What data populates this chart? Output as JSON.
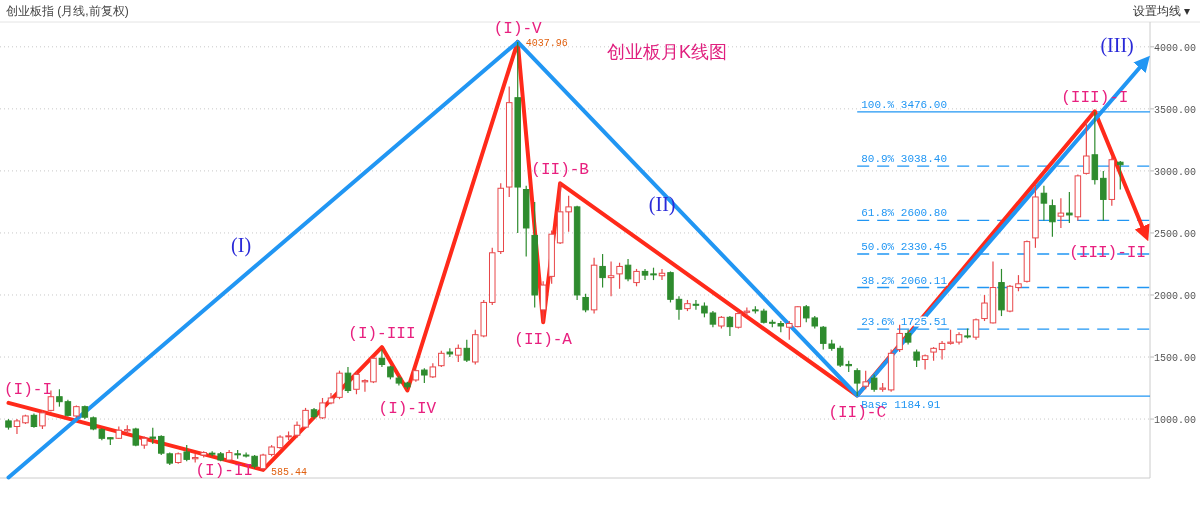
{
  "chart_data": {
    "type": "candlestick",
    "title": "创业板月K线图",
    "subtitle": "创业板指 (月线,前复权)",
    "categories": [
      null,
      null,
      null,
      null,
      null,
      null,
      null,
      null,
      null,
      null,
      null,
      null,
      null,
      null,
      null,
      null,
      null,
      null,
      null,
      null,
      null,
      null,
      null,
      null,
      null,
      null,
      null,
      null,
      null,
      null,
      null,
      null,
      null,
      null,
      null,
      null,
      null,
      null,
      null,
      null,
      null,
      null,
      null,
      null,
      null,
      null,
      null,
      null,
      null,
      null,
      null,
      null,
      null,
      null,
      null,
      null,
      null,
      null,
      null,
      null,
      null,
      null,
      null,
      null,
      null,
      null,
      null,
      null,
      null,
      null,
      null,
      null,
      null,
      null,
      null,
      null,
      null,
      null,
      null,
      null,
      null,
      null,
      null,
      null,
      null,
      null,
      null,
      null,
      null,
      null,
      null,
      null,
      null,
      null,
      null,
      null,
      null,
      null,
      null,
      null,
      null,
      null,
      null,
      null,
      null,
      null,
      null,
      null,
      null,
      null,
      null,
      null,
      null,
      null,
      null,
      null,
      null,
      null,
      null,
      null,
      null,
      null,
      null,
      null,
      null,
      null,
      null,
      null,
      null,
      null,
      null,
      null,
      null,
      null,
      null
    ],
    "ohlc": [
      [
        985,
        1000,
        915,
        935
      ],
      [
        940,
        1000,
        880,
        985
      ],
      [
        970,
        1035,
        960,
        1025
      ],
      [
        1030,
        1045,
        930,
        940
      ],
      [
        945,
        1070,
        920,
        1050
      ],
      [
        1070,
        1230,
        1060,
        1180
      ],
      [
        1180,
        1240,
        1100,
        1140
      ],
      [
        1140,
        1155,
        1020,
        1030
      ],
      [
        1025,
        1110,
        1010,
        1100
      ],
      [
        1100,
        1110,
        1000,
        1015
      ],
      [
        1010,
        1020,
        910,
        920
      ],
      [
        915,
        925,
        830,
        845
      ],
      [
        850,
        855,
        790,
        840
      ],
      [
        845,
        940,
        840,
        910
      ],
      [
        905,
        950,
        880,
        915
      ],
      [
        920,
        930,
        780,
        790
      ],
      [
        790,
        860,
        760,
        845
      ],
      [
        855,
        930,
        800,
        845
      ],
      [
        860,
        870,
        710,
        725
      ],
      [
        720,
        730,
        630,
        645
      ],
      [
        650,
        730,
        640,
        720
      ],
      [
        735,
        790,
        660,
        675
      ],
      [
        680,
        720,
        650,
        690
      ],
      [
        710,
        740,
        690,
        730
      ],
      [
        725,
        740,
        700,
        720
      ],
      [
        720,
        735,
        660,
        670
      ],
      [
        670,
        750,
        660,
        730
      ],
      [
        720,
        750,
        680,
        715
      ],
      [
        710,
        730,
        690,
        705
      ],
      [
        700,
        710,
        600,
        620
      ],
      [
        600,
        720,
        585.44,
        710
      ],
      [
        715,
        790,
        700,
        775
      ],
      [
        770,
        870,
        760,
        855
      ],
      [
        860,
        900,
        830,
        865
      ],
      [
        870,
        980,
        850,
        950
      ],
      [
        935,
        1090,
        920,
        1070
      ],
      [
        1075,
        1090,
        1000,
        1020
      ],
      [
        1010,
        1170,
        1000,
        1130
      ],
      [
        1130,
        1210,
        1120,
        1170
      ],
      [
        1175,
        1390,
        1160,
        1370
      ],
      [
        1370,
        1420,
        1210,
        1230
      ],
      [
        1240,
        1380,
        1200,
        1360
      ],
      [
        1300,
        1320,
        1220,
        1310
      ],
      [
        1300,
        1500,
        1290,
        1490
      ],
      [
        1490,
        1560,
        1420,
        1440
      ],
      [
        1420,
        1430,
        1320,
        1340
      ],
      [
        1330,
        1350,
        1270,
        1290
      ],
      [
        1290,
        1300,
        1240,
        1260
      ],
      [
        1315,
        1400,
        1300,
        1390
      ],
      [
        1395,
        1410,
        1290,
        1355
      ],
      [
        1340,
        1450,
        1330,
        1420
      ],
      [
        1430,
        1550,
        1420,
        1530
      ],
      [
        1540,
        1570,
        1500,
        1525
      ],
      [
        1515,
        1600,
        1460,
        1570
      ],
      [
        1570,
        1640,
        1460,
        1475
      ],
      [
        1460,
        1720,
        1440,
        1680
      ],
      [
        1670,
        1960,
        1660,
        1940
      ],
      [
        1940,
        2380,
        1920,
        2340
      ],
      [
        2350,
        2900,
        2330,
        2860
      ],
      [
        2870,
        3680,
        2790,
        3550
      ],
      [
        3590,
        4037.96,
        2500,
        2870
      ],
      [
        2850,
        2880,
        2310,
        2540
      ],
      [
        2480,
        2750,
        1900,
        2000
      ],
      [
        1880,
        2110,
        1780,
        2080
      ],
      [
        2150,
        2520,
        2090,
        2490
      ],
      [
        2420,
        2900,
        2410,
        2670
      ],
      [
        2670,
        2800,
        2510,
        2710
      ],
      [
        2710,
        2720,
        1960,
        2000
      ],
      [
        1980,
        2010,
        1860,
        1880
      ],
      [
        1880,
        2300,
        1850,
        2240
      ],
      [
        2230,
        2330,
        2060,
        2140
      ],
      [
        2140,
        2270,
        1990,
        2155
      ],
      [
        2170,
        2260,
        2050,
        2230
      ],
      [
        2240,
        2290,
        2110,
        2130
      ],
      [
        2100,
        2210,
        2070,
        2190
      ],
      [
        2190,
        2210,
        2120,
        2160
      ],
      [
        2170,
        2220,
        2120,
        2165
      ],
      [
        2155,
        2210,
        2120,
        2175
      ],
      [
        2180,
        2190,
        1940,
        1965
      ],
      [
        1965,
        1990,
        1800,
        1885
      ],
      [
        1890,
        1960,
        1870,
        1930
      ],
      [
        1925,
        1960,
        1880,
        1920
      ],
      [
        1910,
        1940,
        1820,
        1855
      ],
      [
        1855,
        1870,
        1740,
        1765
      ],
      [
        1750,
        1830,
        1730,
        1820
      ],
      [
        1820,
        1830,
        1670,
        1745
      ],
      [
        1740,
        1870,
        1730,
        1850
      ],
      [
        1860,
        1900,
        1830,
        1870
      ],
      [
        1880,
        1910,
        1850,
        1875
      ],
      [
        1870,
        1890,
        1770,
        1780
      ],
      [
        1780,
        1800,
        1740,
        1775
      ],
      [
        1770,
        1790,
        1700,
        1750
      ],
      [
        1740,
        1790,
        1640,
        1770
      ],
      [
        1745,
        1910,
        1740,
        1905
      ],
      [
        1905,
        1920,
        1780,
        1815
      ],
      [
        1815,
        1830,
        1730,
        1750
      ],
      [
        1740,
        1750,
        1560,
        1610
      ],
      [
        1605,
        1640,
        1550,
        1570
      ],
      [
        1570,
        1590,
        1420,
        1435
      ],
      [
        1440,
        1470,
        1380,
        1430
      ],
      [
        1390,
        1410,
        1184.91,
        1290
      ],
      [
        1265,
        1390,
        1240,
        1300
      ],
      [
        1330,
        1360,
        1220,
        1240
      ],
      [
        1240,
        1290,
        1220,
        1250
      ],
      [
        1235,
        1560,
        1220,
        1530
      ],
      [
        1560,
        1760,
        1540,
        1690
      ],
      [
        1690,
        1720,
        1600,
        1620
      ],
      [
        1540,
        1560,
        1420,
        1475
      ],
      [
        1480,
        1520,
        1400,
        1510
      ],
      [
        1540,
        1580,
        1470,
        1570
      ],
      [
        1560,
        1630,
        1480,
        1610
      ],
      [
        1610,
        1720,
        1600,
        1620
      ],
      [
        1620,
        1700,
        1600,
        1680
      ],
      [
        1670,
        1730,
        1650,
        1665
      ],
      [
        1660,
        1810,
        1640,
        1800
      ],
      [
        1810,
        2000,
        1790,
        1935
      ],
      [
        1775,
        2270,
        1770,
        2060
      ],
      [
        2100,
        2210,
        1830,
        1880
      ],
      [
        1870,
        2080,
        1860,
        2070
      ],
      [
        2060,
        2160,
        2030,
        2090
      ],
      [
        2110,
        2440,
        2100,
        2430
      ],
      [
        2460,
        2890,
        2380,
        2790
      ],
      [
        2820,
        2880,
        2600,
        2740
      ],
      [
        2720,
        2770,
        2470,
        2590
      ],
      [
        2635,
        2780,
        2540,
        2660
      ],
      [
        2660,
        2830,
        2580,
        2645
      ],
      [
        2630,
        2970,
        2600,
        2960
      ],
      [
        2980,
        3400,
        2970,
        3120
      ],
      [
        3130,
        3476,
        2890,
        2930
      ],
      [
        2940,
        3000,
        2600,
        2770
      ],
      [
        2770,
        3110,
        2720,
        3090
      ],
      [
        3070,
        3080,
        2850,
        3050
      ],
      null,
      null,
      null
    ],
    "series": [
      {
        "type": "line",
        "color": "#ff2a1a",
        "values": [
          1130,
          null,
          null,
          null,
          null,
          null,
          null,
          null,
          null,
          null,
          null,
          null,
          null,
          null,
          null,
          null,
          null,
          null,
          null,
          null,
          null,
          null,
          null,
          null,
          null,
          null,
          null,
          null,
          null,
          null,
          590,
          null,
          null,
          null,
          null,
          null,
          null,
          null,
          null,
          null,
          null,
          null,
          null,
          null,
          1580,
          null,
          null,
          1230,
          null,
          null,
          null,
          null,
          null,
          null,
          null,
          null,
          null,
          null,
          null,
          null,
          4040,
          null,
          null,
          1780,
          null,
          2900,
          null,
          null,
          null,
          null,
          null,
          null,
          null,
          null,
          null,
          null,
          null,
          null,
          null,
          null,
          null,
          null,
          null,
          null,
          null,
          null,
          null,
          null,
          null,
          null,
          null,
          null,
          null,
          null,
          null,
          null,
          null,
          null,
          null,
          null,
          1190,
          null,
          null,
          null,
          null,
          null,
          null,
          null,
          null,
          null,
          null,
          null,
          null,
          null,
          null,
          null,
          null,
          null,
          null,
          null,
          null,
          null,
          null,
          null,
          null,
          null,
          null,
          null,
          3480,
          null,
          null,
          null,
          null,
          null,
          2480
        ]
      },
      {
        "type": "line",
        "color": "#2196f3",
        "values": [
          530,
          null,
          null,
          null,
          null,
          null,
          null,
          null,
          null,
          null,
          null,
          null,
          null,
          null,
          null,
          null,
          null,
          null,
          null,
          null,
          null,
          null,
          null,
          null,
          null,
          null,
          null,
          null,
          null,
          null,
          null,
          null,
          null,
          null,
          null,
          null,
          null,
          null,
          null,
          null,
          null,
          null,
          null,
          null,
          null,
          null,
          null,
          null,
          null,
          null,
          null,
          null,
          null,
          null,
          null,
          null,
          null,
          null,
          null,
          null,
          4040,
          null,
          null,
          null,
          null,
          null,
          null,
          null,
          null,
          null,
          null,
          null,
          null,
          null,
          null,
          null,
          null,
          null,
          null,
          null,
          null,
          null,
          null,
          null,
          null,
          null,
          null,
          null,
          null,
          null,
          null,
          null,
          null,
          null,
          null,
          null,
          null,
          null,
          null,
          null,
          1190,
          null,
          null,
          null,
          null,
          null,
          null,
          null,
          null,
          null,
          null,
          null,
          null,
          null,
          null,
          null,
          null,
          null,
          null,
          null,
          null,
          null,
          null,
          null,
          null,
          null,
          null,
          null,
          null,
          null,
          null,
          null,
          null,
          null,
          3890
        ]
      }
    ],
    "ylim": [
      525,
      4200
    ],
    "yticks": [
      {
        "value": 1000,
        "label": "1000.00"
      },
      {
        "value": 1500,
        "label": "1500.00"
      },
      {
        "value": 2000,
        "label": "2000.00"
      },
      {
        "value": 2500,
        "label": "2500.00"
      },
      {
        "value": 3000,
        "label": "3000.00"
      },
      {
        "value": 3500,
        "label": "3500.00"
      },
      {
        "value": 4000,
        "label": "4000.00"
      }
    ],
    "tick_labels": "y",
    "grid": "y",
    "ref_lines": [
      {
        "axis": "y",
        "value": 3476,
        "label": "100.% 3476.00",
        "color": "#2196f3",
        "line_style": "solid"
      },
      {
        "axis": "y",
        "value": 3038.4,
        "label": "80.9% 3038.40",
        "color": "#2196f3",
        "line_style": "dashed"
      },
      {
        "axis": "y",
        "value": 2600.8,
        "label": "61.8% 2600.80",
        "color": "#2196f3",
        "line_style": "dashed"
      },
      {
        "axis": "y",
        "value": 2330.45,
        "label": "50.0% 2330.45",
        "color": "#2196f3",
        "line_style": "dashed"
      },
      {
        "axis": "y",
        "value": 2060.11,
        "label": "38.2% 2060.11",
        "color": "#2196f3",
        "line_style": "dashed"
      },
      {
        "axis": "y",
        "value": 1725.51,
        "label": "23.6% 1725.51",
        "color": "#2196f3",
        "line_style": "dashed"
      },
      {
        "axis": "y",
        "value": 1184.91,
        "label": "Base 1184.91",
        "color": "#2196f3",
        "line_style": "solid"
      }
    ],
    "annotations": [
      "(I)-I",
      "(I)-II",
      "(I)-III",
      "(I)-IV",
      "(I)-V",
      "(II)-A",
      "(II)-B",
      "(II)-C",
      "(III)-I",
      "(III)-II",
      "4037.96",
      "585.44",
      "(I)",
      "(II)",
      "(III)",
      "设置均线 ▾"
    ]
  }
}
